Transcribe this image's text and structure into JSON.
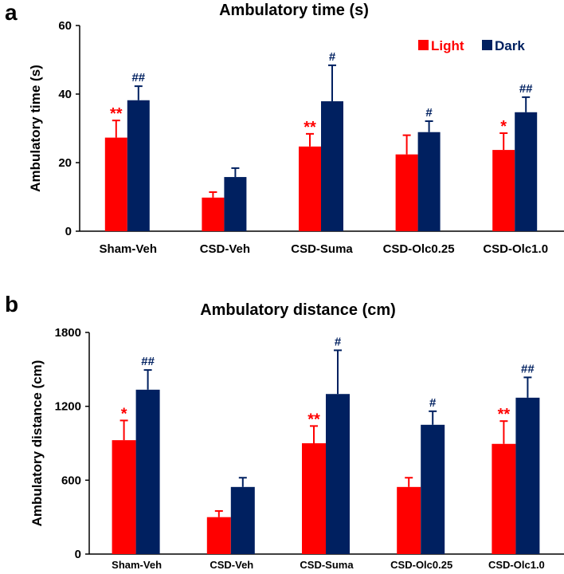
{
  "chart_data": [
    {
      "panel": "a",
      "type": "bar",
      "title": "Ambulatory time (s)",
      "xlabel": "",
      "ylabel": "Ambulatory time (s)",
      "ylim": [
        0,
        60
      ],
      "yticks": [
        0,
        20,
        40,
        60
      ],
      "categories": [
        "Sham-Veh",
        "CSD-Veh",
        "CSD-Suma",
        "CSD-Olc0.25",
        "CSD-Olc1.0"
      ],
      "legend": {
        "placement": "top-right"
      },
      "series": [
        {
          "name": "Light",
          "color": "#FF0000",
          "values": [
            27.3,
            9.8,
            24.7,
            22.4,
            23.7
          ],
          "errors": [
            5.0,
            1.6,
            3.7,
            5.6,
            4.9
          ],
          "annotations": [
            "**",
            "",
            "**",
            "",
            "*"
          ]
        },
        {
          "name": "Dark",
          "color": "#002060",
          "values": [
            38.2,
            15.8,
            37.9,
            28.9,
            34.7
          ],
          "errors": [
            4.1,
            2.6,
            10.5,
            3.2,
            4.4
          ],
          "annotations": [
            "##",
            "",
            "#",
            "#",
            "##"
          ]
        }
      ]
    },
    {
      "panel": "b",
      "type": "bar",
      "title": "Ambulatory distance (cm)",
      "xlabel": "",
      "ylabel": "Ambulatory distance (cm)",
      "ylim": [
        0,
        1800
      ],
      "yticks": [
        0,
        600,
        1200,
        1800
      ],
      "categories": [
        "Sham-Veh",
        "CSD-Veh",
        "CSD-Suma",
        "CSD-Olc0.25",
        "CSD-Olc1.0"
      ],
      "series": [
        {
          "name": "Light",
          "color": "#FF0000",
          "values": [
            925,
            300,
            900,
            545,
            895
          ],
          "errors": [
            160,
            50,
            140,
            75,
            185
          ],
          "annotations": [
            "*",
            "",
            "**",
            "",
            "**"
          ]
        },
        {
          "name": "Dark",
          "color": "#002060",
          "values": [
            1335,
            545,
            1300,
            1050,
            1270
          ],
          "errors": [
            160,
            75,
            355,
            110,
            165
          ],
          "annotations": [
            "##",
            "",
            "#",
            "#",
            "##"
          ]
        }
      ]
    }
  ],
  "panels": [
    {
      "letter": "a"
    },
    {
      "letter": "b"
    }
  ]
}
